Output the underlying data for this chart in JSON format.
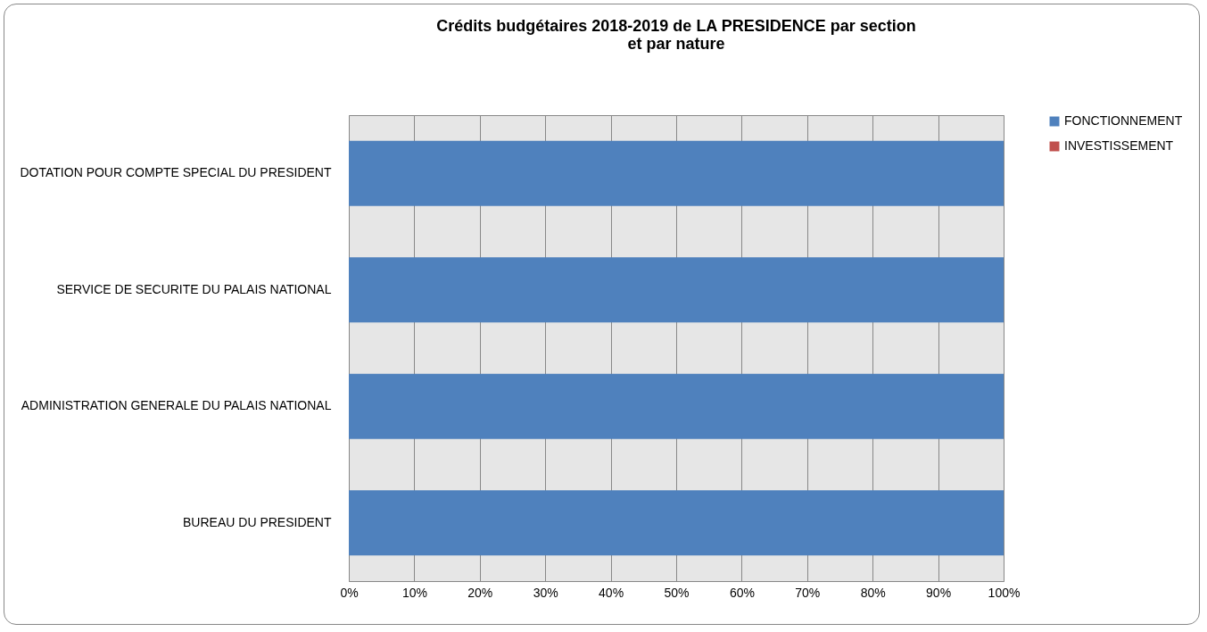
{
  "chart_data": {
    "type": "bar",
    "title": "Crédits budgétaires  2018-2019 de LA PRESIDENCE par section\net par nature",
    "orientation": "horizontal",
    "stacked": true,
    "categories": [
      "DOTATION POUR COMPTE SPECIAL DU PRESIDENT",
      "SERVICE DE SECURITE DU PALAIS NATIONAL",
      "ADMINISTRATION GENERALE DU PALAIS NATIONAL",
      "BUREAU DU PRESIDENT"
    ],
    "series": [
      {
        "name": "FONCTIONNEMENT",
        "color": "#4f81bd",
        "values": [
          100,
          100,
          100,
          100
        ]
      },
      {
        "name": "INVESTISSEMENT",
        "color": "#c0504d",
        "values": [
          0,
          0,
          0,
          0
        ]
      }
    ],
    "xlim": [
      0,
      100
    ],
    "xticks": [
      {
        "value": 0,
        "label": "0%"
      },
      {
        "value": 10,
        "label": "10%"
      },
      {
        "value": 20,
        "label": "20%"
      },
      {
        "value": 30,
        "label": "30%"
      },
      {
        "value": 40,
        "label": "40%"
      },
      {
        "value": 50,
        "label": "50%"
      },
      {
        "value": 60,
        "label": "60%"
      },
      {
        "value": 70,
        "label": "70%"
      },
      {
        "value": 80,
        "label": "80%"
      },
      {
        "value": 90,
        "label": "90%"
      },
      {
        "value": 100,
        "label": "100%"
      }
    ],
    "grid": "x",
    "legend": "right"
  }
}
